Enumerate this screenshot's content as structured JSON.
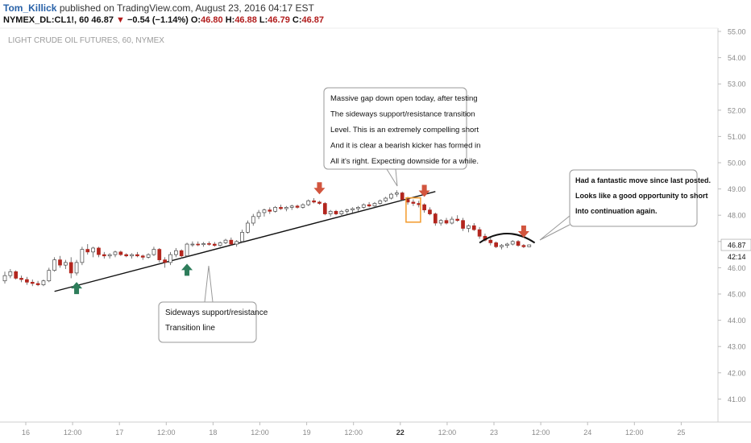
{
  "header": {
    "author": "Tom_Killick",
    "published_text": "published on TradingView.com, August 23, 2016 04:17 EST",
    "symbol": "NYMEX_DL:CL1!, 60",
    "last": "46.87",
    "change_arrow": "▼",
    "change": "−0.54 (−1.14%)",
    "o_label": "O:",
    "o_value": "46.80",
    "h_label": "H:",
    "h_value": "46.88",
    "l_label": "L:",
    "l_value": "46.79",
    "c_label": "C:",
    "c_value": "46.87"
  },
  "colors": {
    "up_body": "#ffffff",
    "down_body": "#b3261e",
    "wick": "#555555",
    "trend_line": "#111111",
    "arrow_buy": "#2e7d5b",
    "arrow_sell": "#d2553e",
    "highlight_box": "#f39a2b",
    "axis_text": "#8a8a8a"
  },
  "chart_data": {
    "type": "candlestick",
    "title": "LIGHT CRUDE OIL FUTURES, 60, NYMEX",
    "y_ticks": [
      "41.00",
      "42.00",
      "43.00",
      "44.00",
      "45.00",
      "46.00",
      "47.00",
      "48.00",
      "49.00",
      "50.00",
      "51.00",
      "52.00",
      "53.00",
      "54.00",
      "55.00"
    ],
    "ylim": [
      40.5,
      55.0
    ],
    "x_ticks": [
      "16",
      "12:00",
      "17",
      "12:00",
      "18",
      "12:00",
      "19",
      "12:00",
      "22",
      "12:00",
      "23",
      "12:00",
      "24",
      "12:00",
      "25"
    ],
    "x_tick_bold": [
      false,
      false,
      false,
      false,
      false,
      false,
      false,
      false,
      true,
      false,
      false,
      false,
      false,
      false,
      false
    ],
    "price_label": "46.87",
    "countdown_label": "42:14",
    "candles": [
      [
        45.5,
        45.85,
        45.4,
        45.7
      ],
      [
        45.7,
        45.95,
        45.6,
        45.85
      ],
      [
        45.85,
        45.9,
        45.55,
        45.6
      ],
      [
        45.6,
        45.7,
        45.45,
        45.55
      ],
      [
        45.55,
        45.65,
        45.35,
        45.45
      ],
      [
        45.45,
        45.55,
        45.3,
        45.4
      ],
      [
        45.4,
        45.5,
        45.3,
        45.35
      ],
      [
        45.35,
        45.55,
        45.3,
        45.5
      ],
      [
        45.5,
        46.0,
        45.45,
        45.9
      ],
      [
        45.9,
        46.4,
        45.85,
        46.3
      ],
      [
        46.3,
        46.45,
        46.0,
        46.1
      ],
      [
        46.1,
        46.3,
        45.95,
        46.2
      ],
      [
        46.2,
        46.4,
        45.6,
        45.8
      ],
      [
        45.8,
        46.3,
        45.7,
        46.2
      ],
      [
        46.2,
        46.8,
        46.1,
        46.7
      ],
      [
        46.7,
        46.9,
        46.5,
        46.6
      ],
      [
        46.6,
        46.8,
        46.4,
        46.75
      ],
      [
        46.75,
        46.8,
        46.4,
        46.5
      ],
      [
        46.5,
        46.6,
        46.35,
        46.45
      ],
      [
        46.45,
        46.55,
        46.35,
        46.5
      ],
      [
        46.5,
        46.65,
        46.4,
        46.6
      ],
      [
        46.6,
        46.65,
        46.45,
        46.5
      ],
      [
        46.5,
        46.55,
        46.4,
        46.45
      ],
      [
        46.45,
        46.55,
        46.35,
        46.5
      ],
      [
        46.5,
        46.6,
        46.4,
        46.45
      ],
      [
        46.45,
        46.5,
        46.3,
        46.4
      ],
      [
        46.4,
        46.55,
        46.35,
        46.5
      ],
      [
        46.5,
        46.8,
        46.45,
        46.7
      ],
      [
        46.7,
        46.75,
        46.2,
        46.3
      ],
      [
        46.3,
        46.4,
        46.0,
        46.2
      ],
      [
        46.2,
        46.6,
        46.1,
        46.5
      ],
      [
        46.5,
        46.75,
        46.4,
        46.65
      ],
      [
        46.65,
        46.7,
        46.35,
        46.45
      ],
      [
        46.45,
        46.95,
        46.4,
        46.9
      ],
      [
        46.9,
        47.0,
        46.8,
        46.9
      ],
      [
        46.9,
        47.0,
        46.82,
        46.88
      ],
      [
        46.88,
        46.98,
        46.8,
        46.92
      ],
      [
        46.92,
        47.0,
        46.84,
        46.9
      ],
      [
        46.9,
        46.98,
        46.8,
        46.85
      ],
      [
        46.85,
        47.0,
        46.8,
        46.95
      ],
      [
        46.95,
        47.1,
        46.9,
        47.05
      ],
      [
        47.05,
        47.15,
        46.85,
        46.9
      ],
      [
        46.9,
        47.05,
        46.8,
        47.0
      ],
      [
        47.0,
        47.45,
        46.95,
        47.35
      ],
      [
        47.35,
        47.8,
        47.3,
        47.7
      ],
      [
        47.7,
        48.05,
        47.6,
        47.95
      ],
      [
        47.95,
        48.2,
        47.85,
        48.1
      ],
      [
        48.1,
        48.25,
        47.95,
        48.2
      ],
      [
        48.2,
        48.3,
        48.05,
        48.15
      ],
      [
        48.15,
        48.35,
        48.1,
        48.3
      ],
      [
        48.3,
        48.4,
        48.2,
        48.25
      ],
      [
        48.25,
        48.35,
        48.15,
        48.3
      ],
      [
        48.3,
        48.4,
        48.2,
        48.35
      ],
      [
        48.35,
        48.4,
        48.25,
        48.3
      ],
      [
        48.3,
        48.45,
        48.25,
        48.4
      ],
      [
        48.4,
        48.6,
        48.35,
        48.55
      ],
      [
        48.55,
        48.65,
        48.45,
        48.5
      ],
      [
        48.5,
        48.55,
        48.4,
        48.45
      ],
      [
        48.45,
        48.5,
        48.0,
        48.05
      ],
      [
        48.05,
        48.2,
        47.95,
        48.15
      ],
      [
        48.15,
        48.2,
        48.0,
        48.05
      ],
      [
        48.05,
        48.2,
        47.95,
        48.15
      ],
      [
        48.15,
        48.25,
        48.05,
        48.2
      ],
      [
        48.2,
        48.3,
        48.1,
        48.25
      ],
      [
        48.25,
        48.35,
        48.15,
        48.3
      ],
      [
        48.3,
        48.45,
        48.25,
        48.4
      ],
      [
        48.4,
        48.5,
        48.3,
        48.35
      ],
      [
        48.35,
        48.5,
        48.3,
        48.45
      ],
      [
        48.45,
        48.6,
        48.4,
        48.55
      ],
      [
        48.55,
        48.7,
        48.5,
        48.65
      ],
      [
        48.65,
        48.85,
        48.6,
        48.8
      ],
      [
        48.8,
        48.95,
        48.7,
        48.85
      ],
      [
        48.85,
        48.9,
        48.55,
        48.6
      ],
      [
        48.6,
        48.7,
        48.4,
        48.5
      ],
      [
        48.5,
        48.6,
        48.35,
        48.45
      ],
      [
        48.45,
        48.55,
        48.3,
        48.4
      ],
      [
        48.4,
        48.45,
        48.1,
        48.2
      ],
      [
        48.2,
        48.3,
        48.0,
        48.05
      ],
      [
        48.05,
        48.1,
        47.6,
        47.7
      ],
      [
        47.7,
        47.85,
        47.6,
        47.8
      ],
      [
        47.8,
        47.9,
        47.65,
        47.7
      ],
      [
        47.7,
        47.95,
        47.65,
        47.85
      ],
      [
        47.85,
        48.0,
        47.75,
        47.8
      ],
      [
        47.8,
        47.9,
        47.4,
        47.5
      ],
      [
        47.5,
        47.65,
        47.35,
        47.6
      ],
      [
        47.6,
        47.7,
        47.4,
        47.45
      ],
      [
        47.45,
        47.55,
        47.1,
        47.2
      ],
      [
        47.2,
        47.3,
        47.0,
        47.05
      ],
      [
        47.05,
        47.15,
        46.85,
        46.95
      ],
      [
        46.95,
        47.0,
        46.75,
        46.8
      ],
      [
        46.8,
        46.9,
        46.7,
        46.85
      ],
      [
        46.85,
        46.95,
        46.75,
        46.9
      ],
      [
        46.9,
        47.05,
        46.85,
        47.0
      ],
      [
        47.0,
        47.05,
        46.8,
        46.85
      ],
      [
        46.85,
        46.9,
        46.75,
        46.8
      ],
      [
        46.8,
        46.88,
        46.79,
        46.87
      ]
    ],
    "trend_line": [
      [
        9,
        45.1
      ],
      [
        78,
        48.9
      ]
    ],
    "buy_arrows": [
      13,
      33
    ],
    "sell_arrows": [
      57,
      76,
      94
    ],
    "highlight_candle": 74,
    "arc": {
      "from": 86,
      "to": 96,
      "base": 46.95,
      "peak": 47.3
    },
    "annotations": [
      {
        "id": "gap",
        "lines": [
          "Massive gap down open today, after testing",
          "The sideways support/resistance transition",
          "Level. This is an extremely compelling short",
          "And it is clear a bearish kicker has formed in",
          "All it's right. Expecting downside for a while."
        ],
        "bold": false
      },
      {
        "id": "posted",
        "lines": [
          "Had a fantastic move since last posted.",
          "Looks like a good opportunity to short",
          "Into continuation again."
        ],
        "bold": true
      },
      {
        "id": "sideways",
        "lines": [
          "Sideways support/resistance",
          "Transition line"
        ],
        "bold": false
      }
    ]
  }
}
